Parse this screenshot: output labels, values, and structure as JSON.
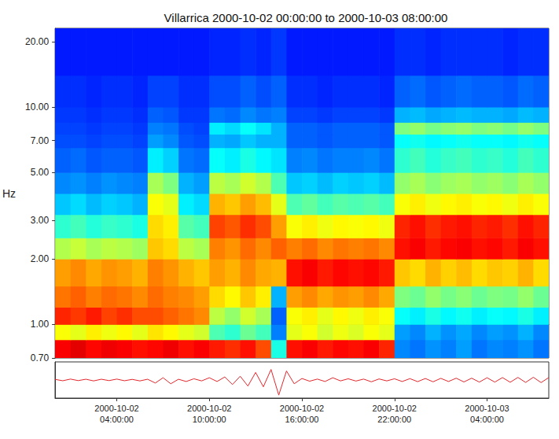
{
  "chart_data": [
    {
      "type": "heatmap",
      "title": "Villarrica 2000-10-02 00:00:00 to 2000-10-03 08:00:00",
      "ylabel": "Hz",
      "log": "y",
      "tick_labels": "y",
      "xlim": [
        "2000-10-02 00:00:00",
        "2000-10-03 08:00:00"
      ],
      "ylim": [
        0.7,
        23
      ],
      "yticks": [
        {
          "value": 0.7,
          "label": "0.70"
        },
        {
          "value": 1,
          "label": "1.00"
        },
        {
          "value": 2,
          "label": "2.00"
        },
        {
          "value": 3,
          "label": "3.00"
        },
        {
          "value": 5,
          "label": "5.00"
        },
        {
          "value": 7,
          "label": "7.00"
        },
        {
          "value": 10,
          "label": "10.00"
        },
        {
          "value": 20,
          "label": "20.00"
        }
      ],
      "color_range": [
        0,
        100
      ],
      "time_edges": [
        "2000-10-02 00:00:00",
        "2000-10-02 01:00:00",
        "2000-10-02 02:00:00",
        "2000-10-02 03:00:00",
        "2000-10-02 04:00:00",
        "2000-10-02 05:00:00",
        "2000-10-02 06:00:00",
        "2000-10-02 07:00:00",
        "2000-10-02 08:00:00",
        "2000-10-02 09:00:00",
        "2000-10-02 10:00:00",
        "2000-10-02 11:00:00",
        "2000-10-02 12:00:00",
        "2000-10-02 13:00:00",
        "2000-10-02 14:00:00",
        "2000-10-02 15:00:00",
        "2000-10-02 16:00:00",
        "2000-10-02 17:00:00",
        "2000-10-02 18:00:00",
        "2000-10-02 19:00:00",
        "2000-10-02 20:00:00",
        "2000-10-02 21:00:00",
        "2000-10-02 22:00:00",
        "2000-10-02 23:00:00",
        "2000-10-03 00:00:00",
        "2000-10-03 01:00:00",
        "2000-10-03 02:00:00",
        "2000-10-03 03:00:00",
        "2000-10-03 04:00:00",
        "2000-10-03 05:00:00",
        "2000-10-03 06:00:00",
        "2000-10-03 07:00:00",
        "2000-10-03 08:00:00"
      ],
      "freq_edges": [
        0.7,
        0.85,
        1.0,
        1.2,
        1.5,
        2.0,
        2.5,
        3.2,
        4.0,
        5.0,
        6.5,
        7.5,
        8.5,
        10,
        14,
        23
      ],
      "cells": [
        [
          88,
          90,
          87,
          89,
          88,
          86,
          87,
          89,
          86,
          88,
          85,
          83,
          86,
          80,
          40,
          86,
          88,
          85,
          87,
          86,
          88,
          84,
          26,
          24,
          27,
          25,
          28,
          24,
          26,
          25,
          27,
          24
        ],
        [
          62,
          60,
          64,
          61,
          63,
          60,
          65,
          63,
          60,
          58,
          45,
          42,
          48,
          44,
          25,
          60,
          62,
          58,
          61,
          59,
          62,
          60,
          28,
          26,
          30,
          27,
          29,
          26,
          28,
          27,
          30,
          26
        ],
        [
          84,
          82,
          85,
          81,
          83,
          80,
          80,
          78,
          76,
          74,
          56,
          52,
          58,
          54,
          22,
          62,
          64,
          60,
          63,
          61,
          64,
          62,
          38,
          36,
          40,
          37,
          39,
          36,
          38,
          37,
          40,
          36
        ],
        [
          76,
          78,
          75,
          77,
          76,
          74,
          77,
          75,
          74,
          72,
          66,
          63,
          68,
          64,
          30,
          72,
          74,
          71,
          73,
          72,
          74,
          71,
          50,
          48,
          52,
          49,
          51,
          48,
          50,
          49,
          52,
          48
        ],
        [
          72,
          74,
          71,
          73,
          72,
          70,
          75,
          73,
          70,
          68,
          72,
          70,
          74,
          71,
          70,
          86,
          88,
          85,
          87,
          86,
          87,
          85,
          68,
          66,
          70,
          67,
          69,
          66,
          68,
          67,
          70,
          66
        ],
        [
          55,
          57,
          54,
          56,
          55,
          53,
          68,
          66,
          56,
          54,
          75,
          73,
          77,
          74,
          78,
          75,
          77,
          74,
          76,
          75,
          76,
          74,
          86,
          88,
          85,
          87,
          88,
          86,
          87,
          85,
          88,
          86
        ],
        [
          42,
          44,
          41,
          43,
          42,
          40,
          66,
          64,
          46,
          44,
          81,
          79,
          83,
          80,
          72,
          62,
          64,
          61,
          63,
          62,
          63,
          61,
          84,
          86,
          83,
          85,
          86,
          84,
          85,
          83,
          86,
          84
        ],
        [
          32,
          34,
          31,
          33,
          32,
          30,
          62,
          60,
          36,
          34,
          70,
          68,
          72,
          69,
          60,
          45,
          47,
          44,
          46,
          45,
          46,
          44,
          62,
          64,
          61,
          63,
          64,
          62,
          63,
          61,
          64,
          62
        ],
        [
          26,
          27,
          25,
          27,
          26,
          25,
          54,
          50,
          30,
          28,
          56,
          54,
          58,
          55,
          45,
          32,
          33,
          31,
          33,
          32,
          33,
          31,
          52,
          54,
          51,
          53,
          54,
          52,
          53,
          51,
          54,
          52
        ],
        [
          22,
          23,
          21,
          22,
          22,
          21,
          36,
          33,
          24,
          23,
          38,
          36,
          40,
          37,
          35,
          25,
          26,
          24,
          25,
          25,
          26,
          24,
          42,
          44,
          41,
          43,
          44,
          42,
          43,
          41,
          44,
          42
        ],
        [
          20,
          20,
          19,
          20,
          20,
          19,
          28,
          26,
          21,
          20,
          30,
          29,
          32,
          30,
          30,
          22,
          22,
          21,
          22,
          22,
          22,
          21,
          38,
          39,
          37,
          38,
          39,
          38,
          38,
          37,
          39,
          38
        ],
        [
          19,
          19,
          18,
          19,
          19,
          18,
          25,
          24,
          20,
          19,
          36,
          34,
          38,
          35,
          30,
          22,
          22,
          21,
          22,
          22,
          22,
          21,
          50,
          52,
          49,
          51,
          52,
          50,
          51,
          49,
          52,
          50
        ],
        [
          18,
          18,
          17,
          18,
          18,
          17,
          22,
          21,
          18,
          18,
          24,
          23,
          26,
          24,
          25,
          19,
          19,
          18,
          19,
          19,
          19,
          18,
          30,
          31,
          29,
          30,
          31,
          30,
          30,
          29,
          31,
          30
        ],
        [
          17,
          17,
          16,
          17,
          17,
          16,
          19,
          19,
          17,
          17,
          20,
          20,
          22,
          20,
          22,
          17,
          17,
          16,
          17,
          17,
          17,
          16,
          22,
          23,
          21,
          22,
          23,
          22,
          22,
          21,
          23,
          22
        ],
        [
          15,
          15,
          15,
          15,
          15,
          15,
          15,
          15,
          15,
          15,
          16,
          16,
          17,
          16,
          18,
          15,
          15,
          15,
          15,
          15,
          15,
          15,
          17,
          17,
          16,
          17,
          17,
          17,
          17,
          16,
          17,
          17
        ]
      ]
    },
    {
      "type": "line",
      "tick_labels": "x",
      "color": "#e3262b",
      "xlim": [
        "2000-10-02 00:00:00",
        "2000-10-03 08:00:00"
      ],
      "xticks": [
        "2000-10-02 04:00:00",
        "2000-10-02 10:00:00",
        "2000-10-02 16:00:00",
        "2000-10-02 22:00:00",
        "2000-10-03 04:00:00"
      ],
      "ylim": [
        -1.2,
        1.2
      ],
      "x": [
        "2000-10-02 00:00:00",
        "2000-10-02 00:30:00",
        "2000-10-02 01:00:00",
        "2000-10-02 01:30:00",
        "2000-10-02 02:00:00",
        "2000-10-02 02:30:00",
        "2000-10-02 03:00:00",
        "2000-10-02 03:30:00",
        "2000-10-02 04:00:00",
        "2000-10-02 04:30:00",
        "2000-10-02 05:00:00",
        "2000-10-02 05:30:00",
        "2000-10-02 06:00:00",
        "2000-10-02 06:30:00",
        "2000-10-02 07:00:00",
        "2000-10-02 07:30:00",
        "2000-10-02 08:00:00",
        "2000-10-02 08:30:00",
        "2000-10-02 09:00:00",
        "2000-10-02 09:30:00",
        "2000-10-02 10:00:00",
        "2000-10-02 10:30:00",
        "2000-10-02 11:00:00",
        "2000-10-02 11:30:00",
        "2000-10-02 12:00:00",
        "2000-10-02 12:30:00",
        "2000-10-02 13:00:00",
        "2000-10-02 13:30:00",
        "2000-10-02 14:00:00",
        "2000-10-02 14:30:00",
        "2000-10-02 15:00:00",
        "2000-10-02 15:30:00",
        "2000-10-02 16:00:00",
        "2000-10-02 16:30:00",
        "2000-10-02 17:00:00",
        "2000-10-02 17:30:00",
        "2000-10-02 18:00:00",
        "2000-10-02 18:30:00",
        "2000-10-02 19:00:00",
        "2000-10-02 19:30:00",
        "2000-10-02 20:00:00",
        "2000-10-02 20:30:00",
        "2000-10-02 21:00:00",
        "2000-10-02 21:30:00",
        "2000-10-02 22:00:00",
        "2000-10-02 22:30:00",
        "2000-10-02 23:00:00",
        "2000-10-02 23:30:00",
        "2000-10-03 00:00:00",
        "2000-10-03 00:30:00",
        "2000-10-03 01:00:00",
        "2000-10-03 01:30:00",
        "2000-10-03 02:00:00",
        "2000-10-03 02:30:00",
        "2000-10-03 03:00:00",
        "2000-10-03 03:30:00",
        "2000-10-03 04:00:00",
        "2000-10-03 04:30:00",
        "2000-10-03 05:00:00",
        "2000-10-03 05:30:00",
        "2000-10-03 06:00:00",
        "2000-10-03 06:30:00",
        "2000-10-03 07:00:00",
        "2000-10-03 07:30:00",
        "2000-10-03 08:00:00"
      ],
      "values": [
        0.04,
        -0.05,
        0.06,
        -0.04,
        0.05,
        -0.06,
        0.05,
        -0.04,
        0.06,
        -0.05,
        0.04,
        -0.06,
        0.05,
        -0.2,
        0.15,
        -0.25,
        0.05,
        -0.1,
        0.08,
        -0.06,
        0.15,
        -0.1,
        0.2,
        -0.3,
        0.25,
        -0.4,
        0.5,
        -0.45,
        0.7,
        -1.0,
        0.6,
        -0.25,
        0.1,
        -0.08,
        0.06,
        -0.1,
        0.15,
        -0.06,
        0.08,
        -0.07,
        0.06,
        -0.12,
        0.07,
        -0.06,
        0.08,
        -0.1,
        0.09,
        -0.11,
        0.1,
        -0.12,
        0.11,
        -0.1,
        0.12,
        -0.13,
        0.12,
        -0.14,
        0.15,
        -0.14,
        0.16,
        -0.15,
        0.17,
        -0.16,
        0.18,
        -0.17,
        0.16
      ]
    }
  ]
}
